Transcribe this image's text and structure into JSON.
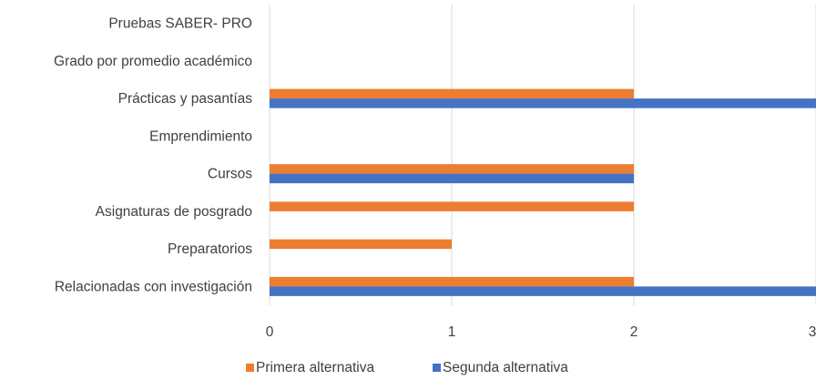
{
  "chart_data": {
    "type": "bar",
    "orientation": "horizontal",
    "categories": [
      "Relacionadas con investigación",
      "Preparatorios",
      "Asignaturas de posgrado",
      "Cursos",
      "Emprendimiento",
      "Prácticas y pasantías",
      "Grado por promedio académico",
      "Pruebas SABER- PRO"
    ],
    "series": [
      {
        "name": "Primera alternativa",
        "color": "#ED7D31",
        "values": [
          2,
          1,
          2,
          2,
          0,
          2,
          0,
          0
        ]
      },
      {
        "name": "Segunda alternativa",
        "color": "#4472C4",
        "values": [
          3,
          0,
          0,
          2,
          0,
          3,
          0,
          0
        ]
      }
    ],
    "xlim": [
      0,
      3
    ],
    "x_ticks": [
      "0",
      "1",
      "2",
      "3"
    ],
    "grid": "vertical",
    "legend": "bottom"
  }
}
